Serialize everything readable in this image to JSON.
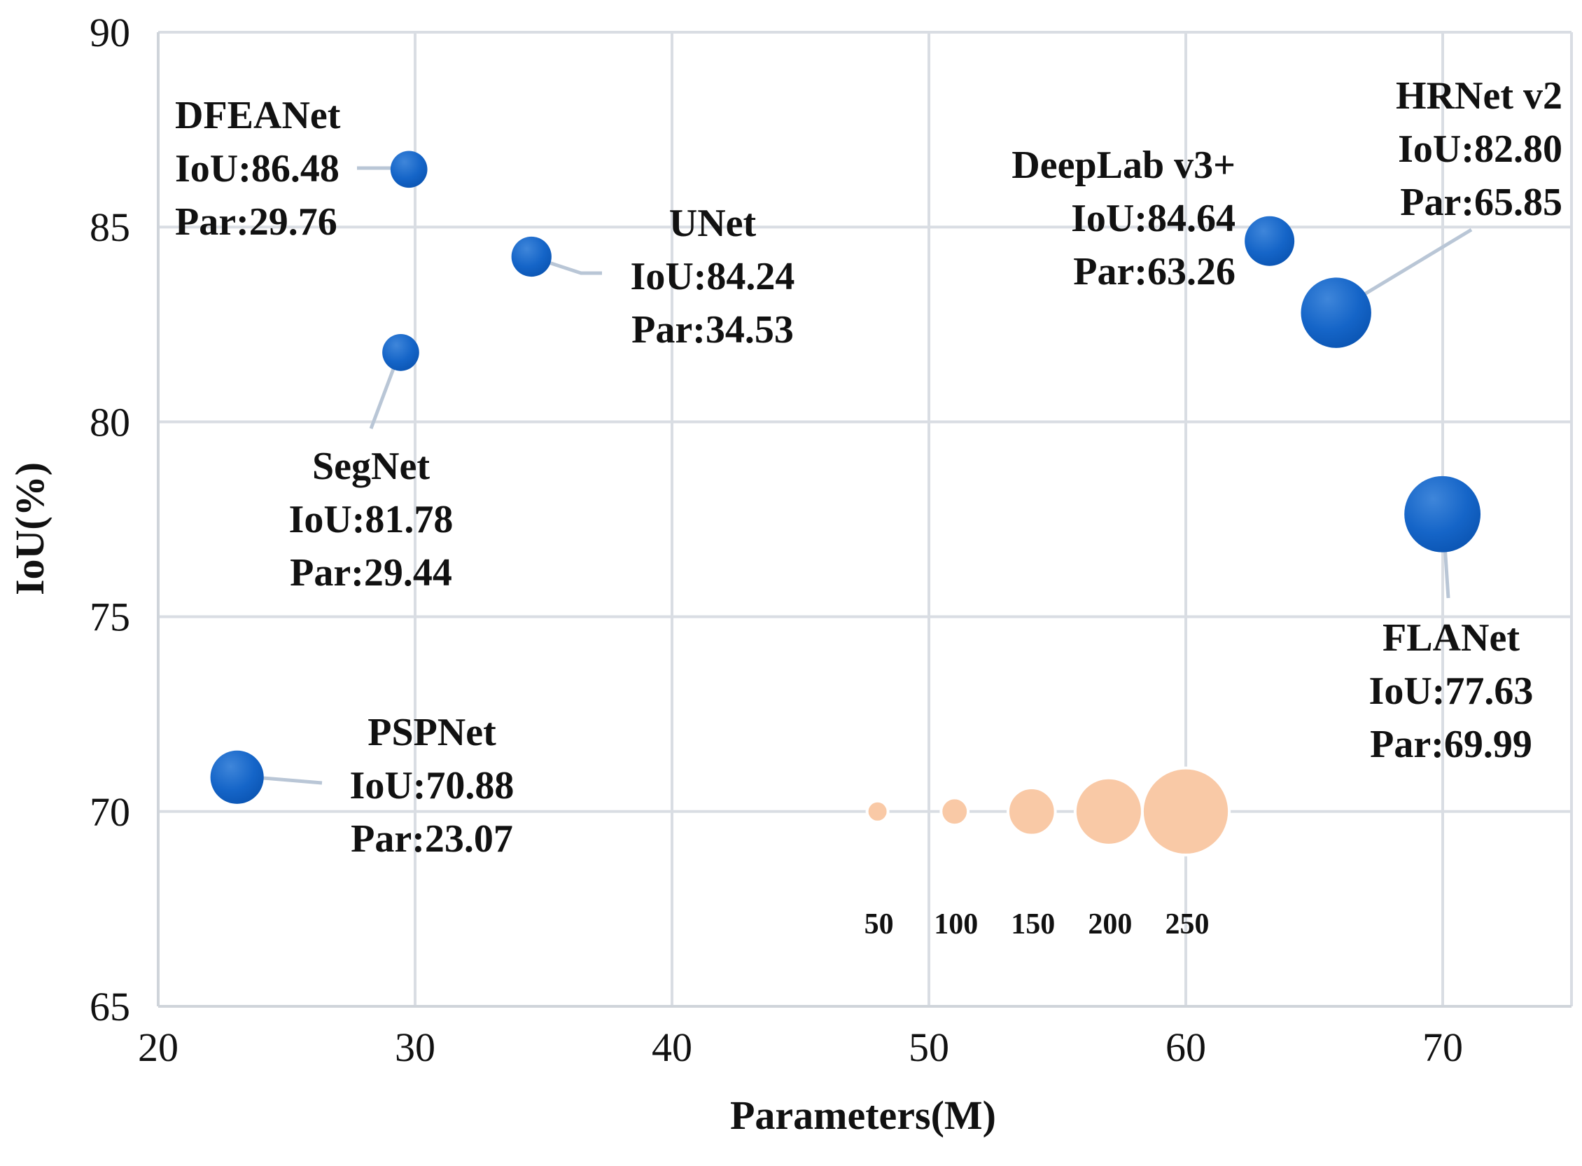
{
  "chart_data": {
    "type": "bubble",
    "title": "",
    "xlabel": "Parameters(M)",
    "ylabel": "IoU(%)",
    "xlim": [
      20,
      75
    ],
    "ylim": [
      65,
      90
    ],
    "xticks": [
      20,
      30,
      40,
      50,
      60,
      70
    ],
    "yticks": [
      65,
      70,
      75,
      80,
      85,
      90
    ],
    "grid": true,
    "series_color": "#1565c8",
    "legend_color": "#f9c9a6",
    "points": [
      {
        "name": "DFEANet",
        "x": 29.76,
        "y": 86.48,
        "size": 55,
        "label_lines": [
          "DFEANet",
          "IoU:86.48",
          "Par:29.76"
        ]
      },
      {
        "name": "UNet",
        "x": 34.53,
        "y": 84.24,
        "size": 65,
        "label_lines": [
          "UNet",
          "IoU:84.24",
          "Par:34.53"
        ]
      },
      {
        "name": "SegNet",
        "x": 29.44,
        "y": 81.78,
        "size": 55,
        "label_lines": [
          "SegNet",
          "IoU:81.78",
          "Par:29.44"
        ]
      },
      {
        "name": "PSPNet",
        "x": 23.07,
        "y": 70.88,
        "size": 115,
        "label_lines": [
          "PSPNet",
          "IoU:70.88",
          "Par:23.07"
        ]
      },
      {
        "name": "DeepLab v3+",
        "x": 63.26,
        "y": 84.64,
        "size": 100,
        "label_lines": [
          "DeepLab v3+",
          "IoU:84.64",
          "Par:63.26"
        ]
      },
      {
        "name": "HRNet v2",
        "x": 65.85,
        "y": 82.8,
        "size": 200,
        "label_lines": [
          "HRNet v2",
          "IoU:82.80",
          "Par:65.85"
        ]
      },
      {
        "name": "FLANet",
        "x": 69.99,
        "y": 77.63,
        "size": 235,
        "label_lines": [
          "FLANet",
          "IoU:77.63",
          "Par:69.99"
        ]
      }
    ],
    "size_legend": [
      {
        "label": "50",
        "size": 50,
        "x": 48,
        "y": 70
      },
      {
        "label": "100",
        "size": 100,
        "x": 51,
        "y": 70
      },
      {
        "label": "150",
        "size": 150,
        "x": 54,
        "y": 70
      },
      {
        "label": "200",
        "size": 200,
        "x": 57,
        "y": 70
      },
      {
        "label": "250",
        "size": 250,
        "x": 60,
        "y": 70
      }
    ]
  }
}
